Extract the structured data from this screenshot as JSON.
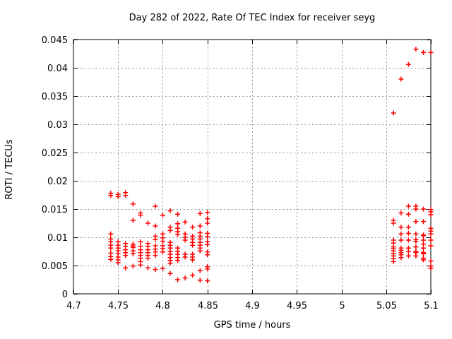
{
  "window": {
    "background": "#ffffff"
  },
  "colors": {
    "marker": "#ff0000",
    "grid": "#8f8f8f",
    "border": "#000000",
    "text": "#000000",
    "background": "#ffffff"
  },
  "chart_data": {
    "type": "scatter",
    "title": "Day 282 of 2022, Rate Of TEC Index for receiver seyg",
    "xlabel": "GPS time / hours",
    "ylabel": "ROTI / TECUs",
    "xlim": [
      4.7,
      5.1
    ],
    "ylim": [
      0,
      0.045
    ],
    "grid": true,
    "legend": "none",
    "marker_style": "plus",
    "xticks": [
      {
        "v": 4.7,
        "label": "4.7"
      },
      {
        "v": 4.75,
        "label": "4.75"
      },
      {
        "v": 4.8,
        "label": "4.8"
      },
      {
        "v": 4.85,
        "label": "4.85"
      },
      {
        "v": 4.9,
        "label": "4.9"
      },
      {
        "v": 4.95,
        "label": "4.95"
      },
      {
        "v": 5.0,
        "label": "5"
      },
      {
        "v": 5.05,
        "label": "5.05"
      },
      {
        "v": 5.1,
        "label": "5.1"
      }
    ],
    "yticks": [
      {
        "v": 0,
        "label": "0"
      },
      {
        "v": 0.005,
        "label": "0.005"
      },
      {
        "v": 0.01,
        "label": "0.01"
      },
      {
        "v": 0.015,
        "label": "0.015"
      },
      {
        "v": 0.02,
        "label": "0.02"
      },
      {
        "v": 0.025,
        "label": "0.025"
      },
      {
        "v": 0.03,
        "label": "0.03"
      },
      {
        "v": 0.035,
        "label": "0.035"
      },
      {
        "v": 0.04,
        "label": "0.04"
      },
      {
        "v": 0.045,
        "label": "0.045"
      }
    ],
    "series": [
      {
        "name": "ROTI",
        "color": "#ff0000",
        "columns": [
          {
            "t": 4.7417,
            "values": [
              0.0178,
              0.0174,
              0.0106,
              0.0097,
              0.0092,
              0.0086,
              0.0081,
              0.0072,
              0.0066,
              0.0061
            ]
          },
          {
            "t": 4.75,
            "values": [
              0.0176,
              0.0172,
              0.0092,
              0.0086,
              0.0081,
              0.0076,
              0.0071,
              0.0065,
              0.006,
              0.0055
            ]
          },
          {
            "t": 4.7583,
            "values": [
              0.0179,
              0.0174,
              0.0089,
              0.0084,
              0.0078,
              0.0073,
              0.0068,
              0.0046
            ]
          },
          {
            "t": 4.7667,
            "values": [
              0.0159,
              0.013,
              0.0088,
              0.0085,
              0.0082,
              0.0076,
              0.0071,
              0.0049
            ]
          },
          {
            "t": 4.775,
            "values": [
              0.0143,
              0.0139,
              0.0092,
              0.0084,
              0.0078,
              0.0073,
              0.0068,
              0.0063,
              0.0057,
              0.0051
            ]
          },
          {
            "t": 4.7833,
            "values": [
              0.0125,
              0.0089,
              0.0084,
              0.0078,
              0.0073,
              0.0068,
              0.0063,
              0.0046
            ]
          },
          {
            "t": 4.7917,
            "values": [
              0.0155,
              0.012,
              0.0102,
              0.0096,
              0.0085,
              0.0079,
              0.0074,
              0.0068,
              0.0043
            ]
          },
          {
            "t": 4.8,
            "values": [
              0.0139,
              0.0106,
              0.0099,
              0.0093,
              0.0085,
              0.008,
              0.0074,
              0.0045
            ]
          },
          {
            "t": 4.8083,
            "values": [
              0.0147,
              0.0118,
              0.0112,
              0.0091,
              0.0086,
              0.0081,
              0.0075,
              0.007,
              0.0064,
              0.0059,
              0.0054,
              0.0036
            ]
          },
          {
            "t": 4.8167,
            "values": [
              0.0141,
              0.0124,
              0.0116,
              0.011,
              0.0105,
              0.0081,
              0.0075,
              0.007,
              0.0064,
              0.0059,
              0.0025
            ]
          },
          {
            "t": 4.825,
            "values": [
              0.0127,
              0.0106,
              0.01,
              0.0095,
              0.007,
              0.0065,
              0.0028
            ]
          },
          {
            "t": 4.8333,
            "values": [
              0.0118,
              0.0102,
              0.0097,
              0.0091,
              0.0086,
              0.007,
              0.0065,
              0.006,
              0.0033
            ]
          },
          {
            "t": 4.8417,
            "values": [
              0.0142,
              0.012,
              0.0108,
              0.0102,
              0.0097,
              0.0091,
              0.0086,
              0.0081,
              0.0076,
              0.0041,
              0.0024
            ]
          },
          {
            "t": 4.85,
            "values": [
              0.0144,
              0.0133,
              0.0125,
              0.0107,
              0.0101,
              0.0092,
              0.0087,
              0.0074,
              0.0069,
              0.0048,
              0.0044,
              0.0023
            ]
          },
          {
            "t": 5.0583,
            "values": [
              0.032,
              0.013,
              0.0125,
              0.0095,
              0.009,
              0.0083,
              0.008,
              0.0076,
              0.0071,
              0.0067,
              0.0062,
              0.0057
            ]
          },
          {
            "t": 5.0667,
            "values": [
              0.038,
              0.0143,
              0.0118,
              0.0106,
              0.0095,
              0.0081,
              0.0077,
              0.0073,
              0.0069,
              0.0064
            ]
          },
          {
            "t": 5.075,
            "values": [
              0.0406,
              0.0155,
              0.0141,
              0.0118,
              0.0107,
              0.0095,
              0.0081,
              0.0075,
              0.0067
            ]
          },
          {
            "t": 5.0833,
            "values": [
              0.0433,
              0.0155,
              0.015,
              0.0128,
              0.0106,
              0.0096,
              0.0093,
              0.0083,
              0.0075,
              0.0073,
              0.0067
            ]
          },
          {
            "t": 5.0917,
            "values": [
              0.0427,
              0.015,
              0.0128,
              0.0104,
              0.0103,
              0.0095,
              0.0088,
              0.0081,
              0.0073,
              0.0071,
              0.0063,
              0.006
            ]
          },
          {
            "t": 5.1,
            "values": [
              0.0427,
              0.0149,
              0.0145,
              0.014,
              0.0116,
              0.0111,
              0.0106,
              0.0095,
              0.0085,
              0.0058,
              0.0049,
              0.0045
            ]
          }
        ]
      }
    ]
  }
}
